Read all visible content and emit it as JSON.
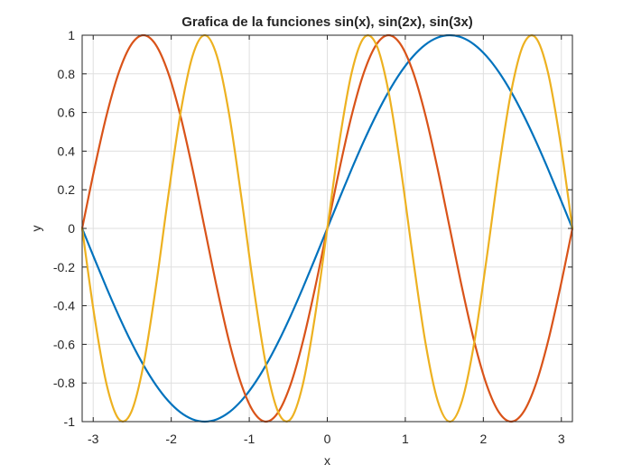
{
  "chart_data": {
    "type": "line",
    "title": "Grafica de la funciones sin(x), sin(2x), sin(3x)",
    "xlabel": "x",
    "ylabel": "y",
    "xlim": [
      -3.14159,
      3.14159
    ],
    "ylim": [
      -1,
      1
    ],
    "grid": true,
    "x_ticks": [
      -3,
      -2,
      -1,
      0,
      1,
      2,
      3
    ],
    "x_tick_labels": [
      "-3",
      "-2",
      "-1",
      "0",
      "1",
      "2",
      "3"
    ],
    "y_ticks": [
      -1,
      -0.8,
      -0.6,
      -0.4,
      -0.2,
      0,
      0.2,
      0.4,
      0.6,
      0.8,
      1
    ],
    "y_tick_labels": [
      "-1",
      "-0.8",
      "-0.6",
      "-0.4",
      "-0.2",
      "0",
      "0.2",
      "0.4",
      "0.6",
      "0.8",
      "1"
    ],
    "x": [
      -3.1416,
      -2.9845,
      -2.8274,
      -2.6704,
      -2.5133,
      -2.3562,
      -2.1991,
      -2.042,
      -1.885,
      -1.7279,
      -1.5708,
      -1.4137,
      -1.2566,
      -1.0996,
      -0.9425,
      -0.7854,
      -0.6283,
      -0.4712,
      -0.3142,
      -0.1571,
      0,
      0.1571,
      0.3142,
      0.4712,
      0.6283,
      0.7854,
      0.9425,
      1.0996,
      1.2566,
      1.4137,
      1.5708,
      1.7279,
      1.885,
      2.042,
      2.1991,
      2.3562,
      2.5133,
      2.6704,
      2.8274,
      2.9845,
      3.1416
    ],
    "series": [
      {
        "color": "#0072bd",
        "values": [
          0,
          -0.1564,
          -0.309,
          -0.454,
          -0.5878,
          -0.7071,
          -0.809,
          -0.891,
          -0.9511,
          -0.9877,
          -1,
          -0.9877,
          -0.9511,
          -0.891,
          -0.809,
          -0.7071,
          -0.5878,
          -0.454,
          -0.309,
          -0.1564,
          0,
          0.1564,
          0.309,
          0.454,
          0.5878,
          0.7071,
          0.809,
          0.891,
          0.9511,
          0.9877,
          1,
          0.9877,
          0.9511,
          0.891,
          0.809,
          0.7071,
          0.5878,
          0.454,
          0.309,
          0.1564,
          0
        ]
      },
      {
        "color": "#d95319",
        "values": [
          0,
          0.309,
          0.5878,
          0.809,
          0.9511,
          1,
          0.9511,
          0.809,
          0.5878,
          0.309,
          0,
          -0.309,
          -0.5878,
          -0.809,
          -0.9511,
          -1,
          -0.9511,
          -0.809,
          -0.5878,
          -0.309,
          0,
          0.309,
          0.5878,
          0.809,
          0.9511,
          1,
          0.9511,
          0.809,
          0.5878,
          0.309,
          0,
          -0.309,
          -0.5878,
          -0.809,
          -0.9511,
          -1,
          -0.9511,
          -0.809,
          -0.5878,
          -0.309,
          0
        ]
      },
      {
        "color": "#edb120",
        "values": [
          0,
          -0.454,
          -0.809,
          -0.9877,
          -0.9511,
          -0.7071,
          -0.309,
          0.1564,
          0.5878,
          0.891,
          1,
          0.891,
          0.5878,
          0.1564,
          -0.309,
          -0.7071,
          -0.9511,
          -0.9877,
          -0.809,
          -0.454,
          0,
          0.454,
          0.809,
          0.9877,
          0.9511,
          0.7071,
          0.309,
          -0.1564,
          -0.5878,
          -0.891,
          -1,
          -0.891,
          -0.5878,
          -0.1564,
          0.309,
          0.7071,
          0.9511,
          0.9877,
          0.809,
          0.454,
          0
        ]
      }
    ]
  }
}
